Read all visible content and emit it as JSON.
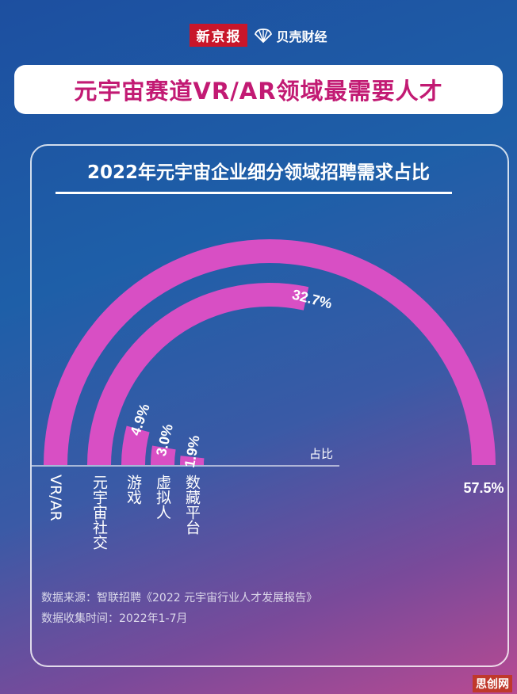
{
  "brand": {
    "name1": "新京报",
    "name2": "贝壳财经",
    "icon": "shell-icon"
  },
  "headline": "元宇宙赛道VR/AR领域最需要人才",
  "chart_data": {
    "type": "bar",
    "title": "2022年元宇宙企业细分领域招聘需求占比",
    "axis_label": "占比",
    "categories": [
      "VR/AR",
      "元宇宙社交",
      "游戏",
      "虚拟人",
      "数藏平台"
    ],
    "values": [
      57.5,
      32.7,
      4.9,
      3.0,
      1.9
    ],
    "value_labels": [
      "57.5%",
      "32.7%",
      "4.9%",
      "3.0%",
      "1.9%"
    ],
    "color": "#d84fc4",
    "grid": false
  },
  "source": {
    "line1": "数据来源：智联招聘《2022 元宇宙行业人才发展报告》",
    "line2": "数据收集时间：2022年1-7月"
  },
  "watermark": "思创网"
}
